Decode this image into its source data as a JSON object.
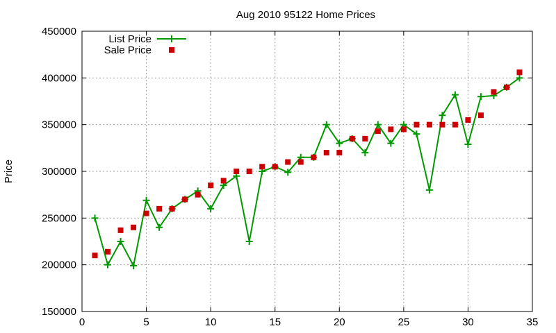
{
  "chart_data": {
    "type": "line",
    "title": "Aug 2010 95122 Home Prices",
    "xlabel": "",
    "ylabel": "Price",
    "xlim": [
      0,
      35
    ],
    "ylim": [
      150000,
      450000
    ],
    "xticks": [
      0,
      5,
      10,
      15,
      20,
      25,
      30,
      35
    ],
    "yticks": [
      150000,
      200000,
      250000,
      300000,
      350000,
      400000,
      450000
    ],
    "grid": true,
    "legend_position": "top-left",
    "series": [
      {
        "name": "List Price",
        "style": "line-with-plus-markers",
        "color": "#009900",
        "points": [
          [
            1,
            250000
          ],
          [
            2,
            200000
          ],
          [
            3,
            225000
          ],
          [
            4,
            199000
          ],
          [
            5,
            269000
          ],
          [
            6,
            240000
          ],
          [
            7,
            260000
          ],
          [
            8,
            270000
          ],
          [
            9,
            279000
          ],
          [
            10,
            260000
          ],
          [
            11,
            285000
          ],
          [
            12,
            295000
          ],
          [
            13,
            225000
          ],
          [
            14,
            300000
          ],
          [
            15,
            305000
          ],
          [
            16,
            299000
          ],
          [
            17,
            315000
          ],
          [
            18,
            315000
          ],
          [
            19,
            350000
          ],
          [
            20,
            330000
          ],
          [
            21,
            335000
          ],
          [
            22,
            320000
          ],
          [
            23,
            350000
          ],
          [
            24,
            330000
          ],
          [
            25,
            350000
          ],
          [
            26,
            340000
          ],
          [
            27,
            280000
          ],
          [
            28,
            360000
          ],
          [
            29,
            382000
          ],
          [
            30,
            329000
          ],
          [
            31,
            380000
          ],
          [
            32,
            381000
          ],
          [
            33,
            390000
          ],
          [
            34,
            400000
          ]
        ]
      },
      {
        "name": "Sale Price",
        "style": "square-markers",
        "color": "#cc0000",
        "points": [
          [
            1,
            210000
          ],
          [
            2,
            214000
          ],
          [
            3,
            237000
          ],
          [
            4,
            240000
          ],
          [
            5,
            255000
          ],
          [
            6,
            260000
          ],
          [
            7,
            260000
          ],
          [
            8,
            270000
          ],
          [
            9,
            275000
          ],
          [
            10,
            285000
          ],
          [
            11,
            290000
          ],
          [
            12,
            300000
          ],
          [
            13,
            300000
          ],
          [
            14,
            305000
          ],
          [
            15,
            305000
          ],
          [
            16,
            310000
          ],
          [
            17,
            310000
          ],
          [
            18,
            315000
          ],
          [
            19,
            320000
          ],
          [
            20,
            320000
          ],
          [
            21,
            335000
          ],
          [
            22,
            335000
          ],
          [
            23,
            343000
          ],
          [
            24,
            345000
          ],
          [
            25,
            345000
          ],
          [
            26,
            350000
          ],
          [
            27,
            350000
          ],
          [
            28,
            350000
          ],
          [
            29,
            350000
          ],
          [
            30,
            355000
          ],
          [
            31,
            360000
          ],
          [
            32,
            385000
          ],
          [
            33,
            390000
          ],
          [
            34,
            406000
          ]
        ]
      }
    ]
  }
}
